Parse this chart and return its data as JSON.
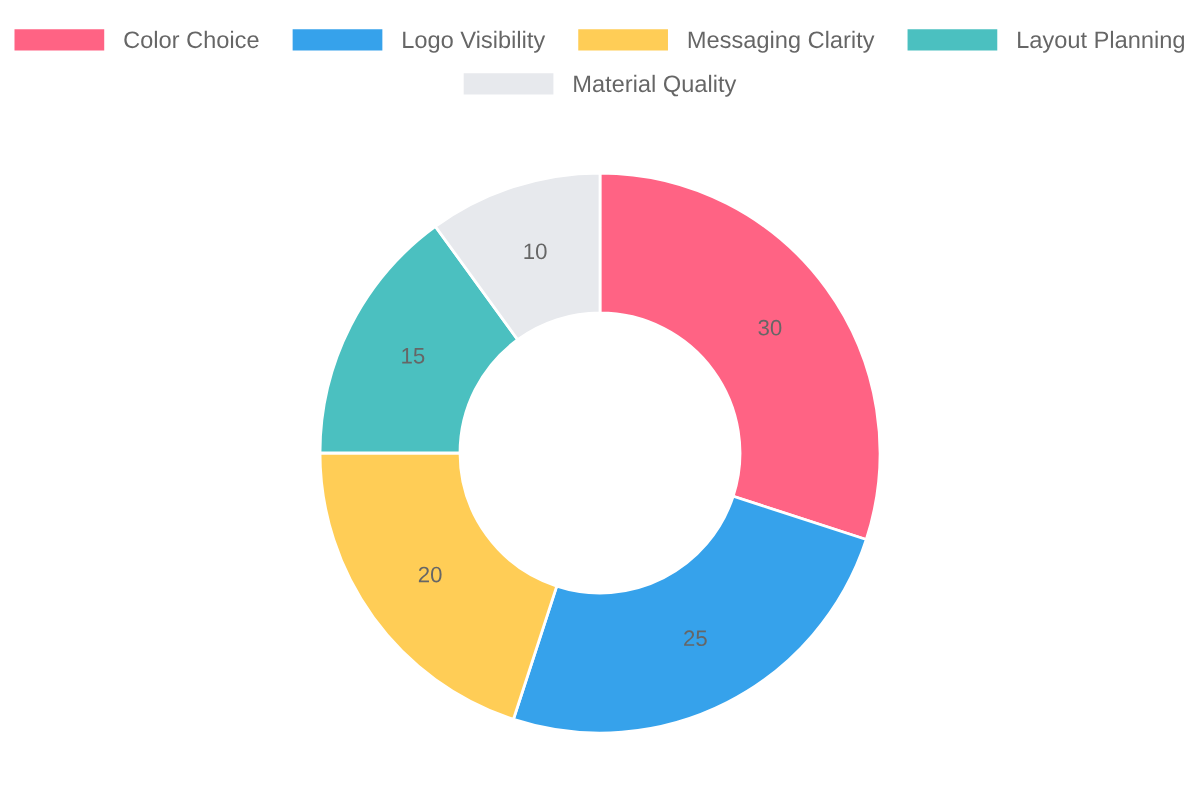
{
  "chart_data": {
    "type": "donut",
    "categories": [
      "Color Choice",
      "Logo Visibility",
      "Messaging Clarity",
      "Layout Planning",
      "Material Quality"
    ],
    "values": [
      30,
      25,
      20,
      15,
      10
    ],
    "colors": [
      "#ff6384",
      "#36a2eb",
      "#ffcd56",
      "#4bc0c0",
      "#e7e9ed"
    ],
    "data_labels": true,
    "legend": "top"
  }
}
